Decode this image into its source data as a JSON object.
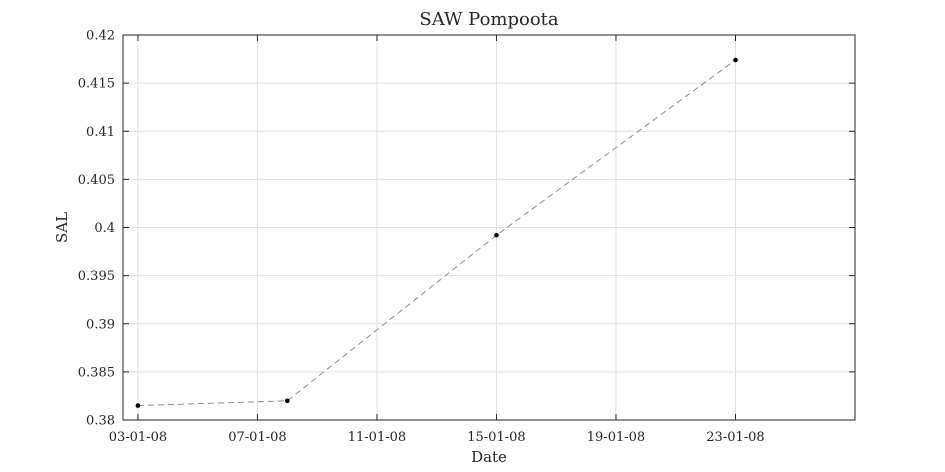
{
  "chart_data": {
    "type": "line",
    "title": "SAW Pompoota",
    "xlabel": "Date",
    "ylabel": "SAL",
    "x_tick_labels": [
      "03-01-08",
      "07-01-08",
      "11-01-08",
      "15-01-08",
      "19-01-08",
      "23-01-08"
    ],
    "y_tick_labels": [
      "0.38",
      "0.385",
      "0.39",
      "0.395",
      "0.4",
      "0.405",
      "0.41",
      "0.415",
      "0.42"
    ],
    "x_range": [
      "2008-01-03",
      "2008-01-27"
    ],
    "y_range": [
      0.38,
      0.42
    ],
    "x_ticks": [
      "2008-01-03",
      "2008-01-07",
      "2008-01-11",
      "2008-01-15",
      "2008-01-19",
      "2008-01-23"
    ],
    "y_ticks": [
      0.38,
      0.385,
      0.39,
      0.395,
      0.4,
      0.405,
      0.41,
      0.415,
      0.42
    ],
    "grid": true,
    "series": [
      {
        "color": "#8c8c8c",
        "marker_color": "#000000",
        "line_style": "dashed",
        "points": [
          {
            "x": "2008-01-03",
            "y": 0.3815
          },
          {
            "x": "2008-01-08",
            "y": 0.382
          },
          {
            "x": "2008-01-15",
            "y": 0.3992
          },
          {
            "x": "2008-01-23",
            "y": 0.4174
          }
        ]
      }
    ]
  }
}
